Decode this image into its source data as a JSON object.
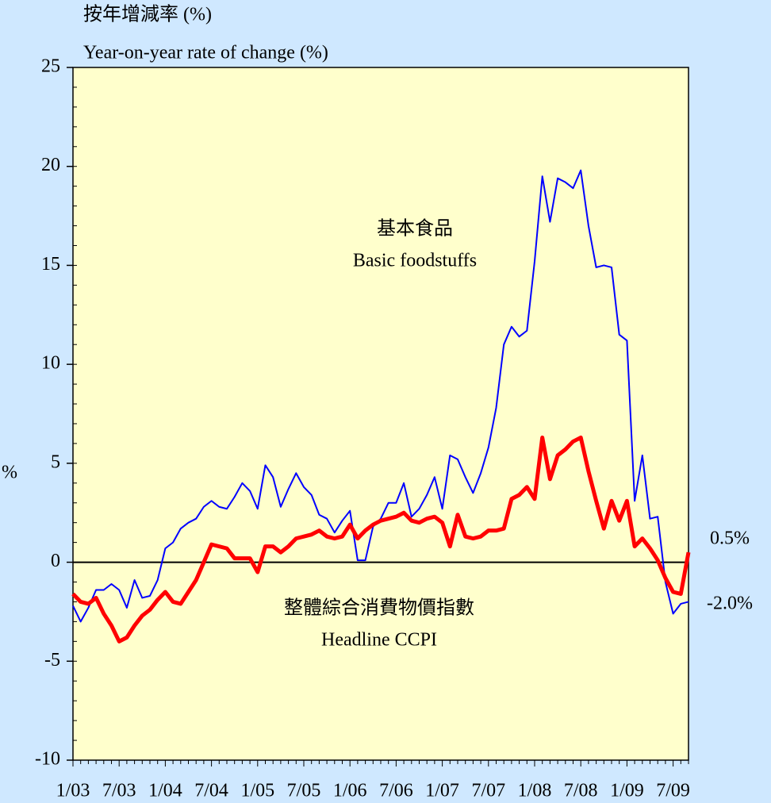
{
  "chart_data": {
    "type": "line",
    "title_zh": "按年增減率 (%)",
    "title": "Year-on-year rate of change (%)",
    "y_label": "%",
    "categories": [
      "1/03",
      null,
      null,
      null,
      null,
      null,
      "7/03",
      null,
      null,
      null,
      null,
      null,
      "1/04",
      null,
      null,
      null,
      null,
      null,
      "7/04",
      null,
      null,
      null,
      null,
      null,
      "1/05",
      null,
      null,
      null,
      null,
      null,
      "7/05",
      null,
      null,
      null,
      null,
      null,
      "1/06",
      null,
      null,
      null,
      null,
      null,
      "7/06",
      null,
      null,
      null,
      null,
      null,
      "1/07",
      null,
      null,
      null,
      null,
      null,
      "7/07",
      null,
      null,
      null,
      null,
      null,
      "1/08",
      null,
      null,
      null,
      null,
      null,
      "7/08",
      null,
      null,
      null,
      null,
      null,
      "1/09",
      null,
      null,
      null,
      null,
      null,
      "7/09",
      null,
      null
    ],
    "series": [
      {
        "name_zh": "基本食品",
        "name": "Basic foodstuffs",
        "color": "#0000ff",
        "width": 2,
        "end_label": "-2.0%",
        "values": [
          -2.2,
          -3.0,
          -2.3,
          -1.4,
          -1.4,
          -1.1,
          -1.4,
          -2.3,
          -0.9,
          -1.8,
          -1.7,
          -0.9,
          0.7,
          1.0,
          1.7,
          2.0,
          2.2,
          2.8,
          3.1,
          2.8,
          2.7,
          3.3,
          4.0,
          3.6,
          2.7,
          4.9,
          4.3,
          2.8,
          3.7,
          4.5,
          3.8,
          3.4,
          2.4,
          2.2,
          1.5,
          2.1,
          2.6,
          0.1,
          0.1,
          1.8,
          2.2,
          3.0,
          3.0,
          4.0,
          2.3,
          2.7,
          3.4,
          4.3,
          2.7,
          5.4,
          5.2,
          4.3,
          3.5,
          4.5,
          5.8,
          7.8,
          11.0,
          11.9,
          11.4,
          11.7,
          15.2,
          19.5,
          17.2,
          19.4,
          19.2,
          18.9,
          19.8,
          17.0,
          14.9,
          15.0,
          14.9,
          11.5,
          11.2,
          3.1,
          5.4,
          2.2,
          2.3,
          -1.0,
          -2.6,
          -2.1,
          -2.0
        ]
      },
      {
        "name_zh": "整體綜合消費物價指數",
        "name": "Headline CCPI",
        "color": "#ff0000",
        "width": 5,
        "end_label": "0.5%",
        "values": [
          -1.6,
          -2.0,
          -2.1,
          -1.8,
          -2.6,
          -3.2,
          -4.0,
          -3.8,
          -3.2,
          -2.7,
          -2.4,
          -1.9,
          -1.5,
          -2.0,
          -2.1,
          -1.5,
          -0.9,
          0.0,
          0.9,
          0.8,
          0.7,
          0.2,
          0.2,
          0.2,
          -0.5,
          0.8,
          0.8,
          0.5,
          0.8,
          1.2,
          1.3,
          1.4,
          1.6,
          1.3,
          1.2,
          1.3,
          1.9,
          1.2,
          1.6,
          1.9,
          2.1,
          2.2,
          2.3,
          2.5,
          2.1,
          2.0,
          2.2,
          2.3,
          2.0,
          0.8,
          2.4,
          1.3,
          1.2,
          1.3,
          1.6,
          1.6,
          1.7,
          3.2,
          3.4,
          3.8,
          3.2,
          6.3,
          4.2,
          5.4,
          5.7,
          6.1,
          6.3,
          4.6,
          3.1,
          1.7,
          3.1,
          2.1,
          3.1,
          0.8,
          1.2,
          0.7,
          0.1,
          -0.8,
          -1.5,
          -1.6,
          0.5
        ]
      }
    ],
    "ylim": [
      -10,
      25
    ],
    "yticks": [
      -10,
      -5,
      0,
      5,
      10,
      15,
      20,
      25
    ],
    "yminor_step": 1,
    "zero_line": true,
    "plot_color": "#ffffcc"
  }
}
